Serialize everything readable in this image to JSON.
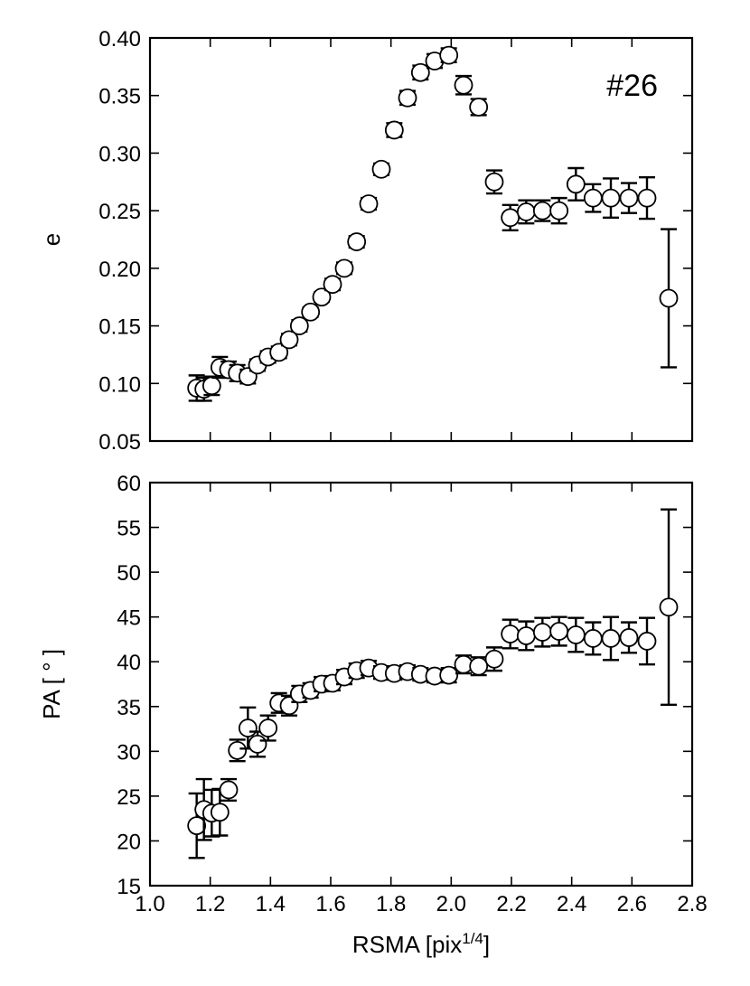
{
  "chart_data": [
    {
      "type": "scatter",
      "name": "top",
      "annotation": "#26",
      "ylabel": "e",
      "xlabel": "",
      "xlim": [
        1.0,
        2.8
      ],
      "ylim": [
        0.05,
        0.4
      ],
      "xticks": [
        1.0,
        1.2,
        1.4,
        1.6,
        1.8,
        2.0,
        2.2,
        2.4,
        2.6,
        2.8
      ],
      "yticks": [
        "0.05",
        "0.10",
        "0.15",
        "0.20",
        "0.25",
        "0.30",
        "0.35",
        "0.40"
      ],
      "show_xtick_labels": false,
      "grid": false,
      "points": [
        {
          "x": 1.155,
          "y": 0.096,
          "err": 0.011
        },
        {
          "x": 1.179,
          "y": 0.095,
          "err": 0.01
        },
        {
          "x": 1.205,
          "y": 0.098,
          "err": 0.008
        },
        {
          "x": 1.232,
          "y": 0.114,
          "err": 0.009
        },
        {
          "x": 1.261,
          "y": 0.112,
          "err": 0.007
        },
        {
          "x": 1.29,
          "y": 0.109,
          "err": 0.007
        },
        {
          "x": 1.325,
          "y": 0.106,
          "err": 0.006
        },
        {
          "x": 1.357,
          "y": 0.116,
          "err": 0.005
        },
        {
          "x": 1.392,
          "y": 0.123,
          "err": 0.005
        },
        {
          "x": 1.428,
          "y": 0.127,
          "err": 0.005
        },
        {
          "x": 1.462,
          "y": 0.138,
          "err": 0.005
        },
        {
          "x": 1.496,
          "y": 0.15,
          "err": 0.005
        },
        {
          "x": 1.533,
          "y": 0.162,
          "err": 0.004
        },
        {
          "x": 1.57,
          "y": 0.175,
          "err": 0.004
        },
        {
          "x": 1.606,
          "y": 0.186,
          "err": 0.005
        },
        {
          "x": 1.645,
          "y": 0.2,
          "err": 0.005
        },
        {
          "x": 1.686,
          "y": 0.223,
          "err": 0.005
        },
        {
          "x": 1.726,
          "y": 0.256,
          "err": 0.005
        },
        {
          "x": 1.768,
          "y": 0.286,
          "err": 0.005
        },
        {
          "x": 1.811,
          "y": 0.32,
          "err": 0.006
        },
        {
          "x": 1.855,
          "y": 0.348,
          "err": 0.006
        },
        {
          "x": 1.898,
          "y": 0.37,
          "err": 0.006
        },
        {
          "x": 1.945,
          "y": 0.38,
          "err": 0.006
        },
        {
          "x": 1.992,
          "y": 0.385,
          "err": 0.006
        },
        {
          "x": 2.041,
          "y": 0.359,
          "err": 0.008
        },
        {
          "x": 2.091,
          "y": 0.34,
          "err": 0.007
        },
        {
          "x": 2.143,
          "y": 0.275,
          "err": 0.01
        },
        {
          "x": 2.196,
          "y": 0.244,
          "err": 0.011
        },
        {
          "x": 2.249,
          "y": 0.249,
          "err": 0.01
        },
        {
          "x": 2.303,
          "y": 0.25,
          "err": 0.009
        },
        {
          "x": 2.358,
          "y": 0.25,
          "err": 0.011
        },
        {
          "x": 2.414,
          "y": 0.273,
          "err": 0.014
        },
        {
          "x": 2.471,
          "y": 0.261,
          "err": 0.012
        },
        {
          "x": 2.53,
          "y": 0.261,
          "err": 0.017
        },
        {
          "x": 2.59,
          "y": 0.261,
          "err": 0.013
        },
        {
          "x": 2.65,
          "y": 0.261,
          "err": 0.018
        },
        {
          "x": 2.722,
          "y": 0.174,
          "err": 0.06
        }
      ]
    },
    {
      "type": "scatter",
      "name": "bottom",
      "annotation": "",
      "ylabel": "PA [ ° ]",
      "xlabel": "RSMA [pix",
      "xlabel_sup": "1/4",
      "xlabel_end": "]",
      "xlim": [
        1.0,
        2.8
      ],
      "ylim": [
        15,
        60
      ],
      "xticks": [
        "1.0",
        "1.2",
        "1.4",
        "1.6",
        "1.8",
        "2.0",
        "2.2",
        "2.4",
        "2.6",
        "2.8"
      ],
      "yticks": [
        "15",
        "20",
        "25",
        "30",
        "35",
        "40",
        "45",
        "50",
        "55",
        "60"
      ],
      "show_xtick_labels": true,
      "grid": false,
      "points": [
        {
          "x": 1.155,
          "y": 21.7,
          "err": 3.6
        },
        {
          "x": 1.179,
          "y": 23.5,
          "err": 3.4
        },
        {
          "x": 1.205,
          "y": 23.1,
          "err": 2.6
        },
        {
          "x": 1.232,
          "y": 23.2,
          "err": 2.6
        },
        {
          "x": 1.261,
          "y": 25.7,
          "err": 1.2
        },
        {
          "x": 1.29,
          "y": 30.1,
          "err": 1.2
        },
        {
          "x": 1.325,
          "y": 32.6,
          "err": 2.3
        },
        {
          "x": 1.357,
          "y": 30.8,
          "err": 1.4
        },
        {
          "x": 1.392,
          "y": 32.6,
          "err": 1.4
        },
        {
          "x": 1.428,
          "y": 35.4,
          "err": 1.1
        },
        {
          "x": 1.462,
          "y": 35.1,
          "err": 1.1
        },
        {
          "x": 1.496,
          "y": 36.4,
          "err": 0.9
        },
        {
          "x": 1.533,
          "y": 36.8,
          "err": 0.8
        },
        {
          "x": 1.57,
          "y": 37.5,
          "err": 0.8
        },
        {
          "x": 1.606,
          "y": 37.6,
          "err": 0.8
        },
        {
          "x": 1.645,
          "y": 38.3,
          "err": 0.8
        },
        {
          "x": 1.686,
          "y": 39.0,
          "err": 0.8
        },
        {
          "x": 1.726,
          "y": 39.3,
          "err": 0.8
        },
        {
          "x": 1.768,
          "y": 38.8,
          "err": 0.7
        },
        {
          "x": 1.811,
          "y": 38.7,
          "err": 0.7
        },
        {
          "x": 1.855,
          "y": 38.9,
          "err": 0.7
        },
        {
          "x": 1.898,
          "y": 38.6,
          "err": 0.7
        },
        {
          "x": 1.945,
          "y": 38.4,
          "err": 0.7
        },
        {
          "x": 1.992,
          "y": 38.5,
          "err": 0.8
        },
        {
          "x": 2.041,
          "y": 39.7,
          "err": 1.0
        },
        {
          "x": 2.091,
          "y": 39.5,
          "err": 1.0
        },
        {
          "x": 2.143,
          "y": 40.3,
          "err": 1.3
        },
        {
          "x": 2.196,
          "y": 43.1,
          "err": 1.6
        },
        {
          "x": 2.249,
          "y": 42.9,
          "err": 1.6
        },
        {
          "x": 2.303,
          "y": 43.3,
          "err": 1.6
        },
        {
          "x": 2.358,
          "y": 43.4,
          "err": 1.6
        },
        {
          "x": 2.414,
          "y": 43.0,
          "err": 1.9
        },
        {
          "x": 2.471,
          "y": 42.6,
          "err": 1.8
        },
        {
          "x": 2.53,
          "y": 42.6,
          "err": 2.4
        },
        {
          "x": 2.59,
          "y": 42.7,
          "err": 1.7
        },
        {
          "x": 2.65,
          "y": 42.3,
          "err": 2.6
        },
        {
          "x": 2.722,
          "y": 46.1,
          "err": 10.9
        }
      ]
    }
  ]
}
